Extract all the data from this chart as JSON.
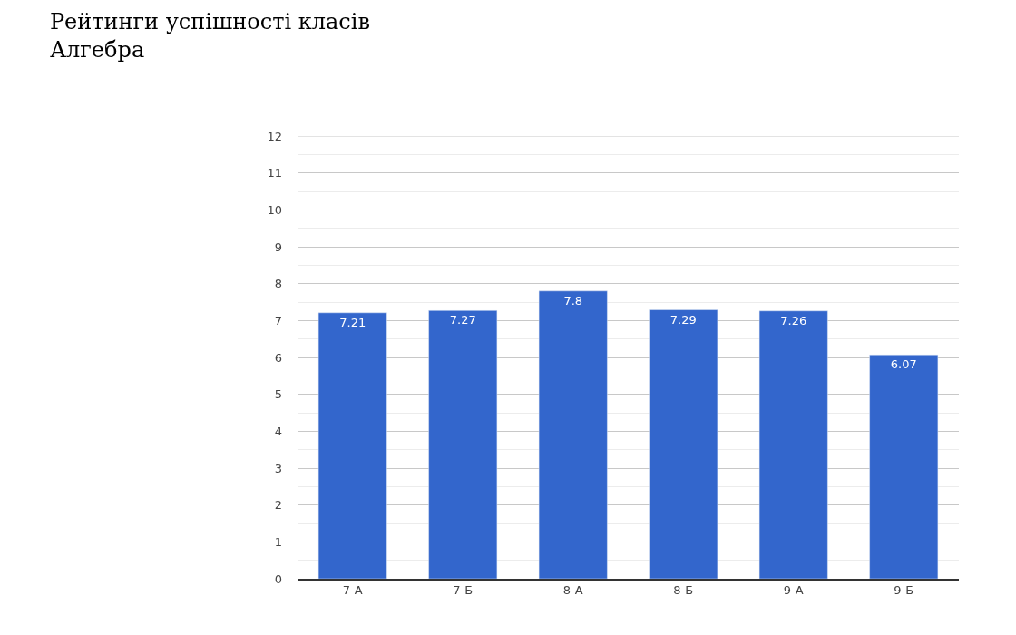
{
  "chart_data": {
    "type": "bar",
    "title": "Рейтинги успішності класів",
    "subtitle": "Алгебра",
    "categories": [
      "7-А",
      "7-Б",
      "8-А",
      "8-Б",
      "9-А",
      "9-Б"
    ],
    "values": [
      7.21,
      7.27,
      7.8,
      7.29,
      7.26,
      6.07
    ],
    "color": "#3366cc",
    "data_labels": true,
    "grid": "y",
    "ylim": [
      0,
      12
    ],
    "yticks": [
      0,
      {
        "value": 0.5,
        "label": null
      },
      1,
      {
        "value": 1.5,
        "label": null
      },
      2,
      {
        "value": 2.5,
        "label": null
      },
      3,
      {
        "value": 3.5,
        "label": null
      },
      4,
      {
        "value": 4.5,
        "label": null
      },
      5,
      {
        "value": 5.5,
        "label": null
      },
      6,
      {
        "value": 6.5,
        "label": null
      },
      7,
      {
        "value": 7.5,
        "label": null
      },
      8,
      {
        "value": 8.5,
        "label": null
      },
      9,
      {
        "value": 9.5,
        "label": null
      },
      10,
      {
        "value": 10.5,
        "label": null
      },
      11,
      {
        "value": 11.5,
        "label": null
      },
      12
    ]
  }
}
